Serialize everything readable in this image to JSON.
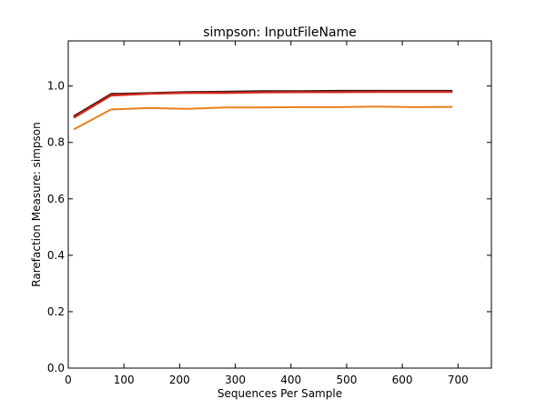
{
  "chart_data": {
    "type": "line",
    "title": "simpson: InputFileName",
    "xlabel": "Sequences Per Sample",
    "ylabel": "Rarefaction Measure: simpson",
    "xlim": [
      0,
      760
    ],
    "ylim": [
      0.0,
      1.16
    ],
    "xticks": [
      0,
      100,
      200,
      300,
      400,
      500,
      600,
      700
    ],
    "xtick_labels": [
      "0",
      "100",
      "200",
      "300",
      "400",
      "500",
      "600",
      "700"
    ],
    "yticks": [
      0.0,
      0.2,
      0.4,
      0.6,
      0.8,
      1.0
    ],
    "ytick_labels": [
      "0.0",
      "0.2",
      "0.4",
      "0.6",
      "0.8",
      "1.0"
    ],
    "grid": false,
    "series": [
      {
        "name": "series-orange",
        "color": "#e8801c",
        "x": [
          10,
          77,
          145,
          213,
          281,
          349,
          417,
          485,
          553,
          621,
          690
        ],
        "y": [
          0.846,
          0.917,
          0.922,
          0.919,
          0.924,
          0.924,
          0.925,
          0.925,
          0.927,
          0.925,
          0.926
        ]
      },
      {
        "name": "series-black",
        "color": "#1a1a1a",
        "x": [
          10,
          77,
          145,
          213,
          281,
          349,
          417,
          485,
          553,
          621,
          690
        ],
        "y": [
          0.893,
          0.972,
          0.975,
          0.979,
          0.98,
          0.982,
          0.982,
          0.983,
          0.983,
          0.983,
          0.983
        ]
      },
      {
        "name": "series-dark-red",
        "color": "#8b1a0e",
        "x": [
          10,
          77,
          145,
          213,
          281,
          349,
          417,
          485,
          553,
          621,
          690
        ],
        "y": [
          0.89,
          0.97,
          0.974,
          0.977,
          0.978,
          0.979,
          0.98,
          0.98,
          0.981,
          0.981,
          0.981
        ]
      },
      {
        "name": "series-red",
        "color": "#d62b20",
        "x": [
          10,
          77,
          145,
          213,
          281,
          349,
          417,
          485,
          553,
          621,
          690
        ],
        "y": [
          0.887,
          0.966,
          0.972,
          0.975,
          0.975,
          0.977,
          0.978,
          0.978,
          0.979,
          0.979,
          0.979
        ]
      }
    ]
  }
}
